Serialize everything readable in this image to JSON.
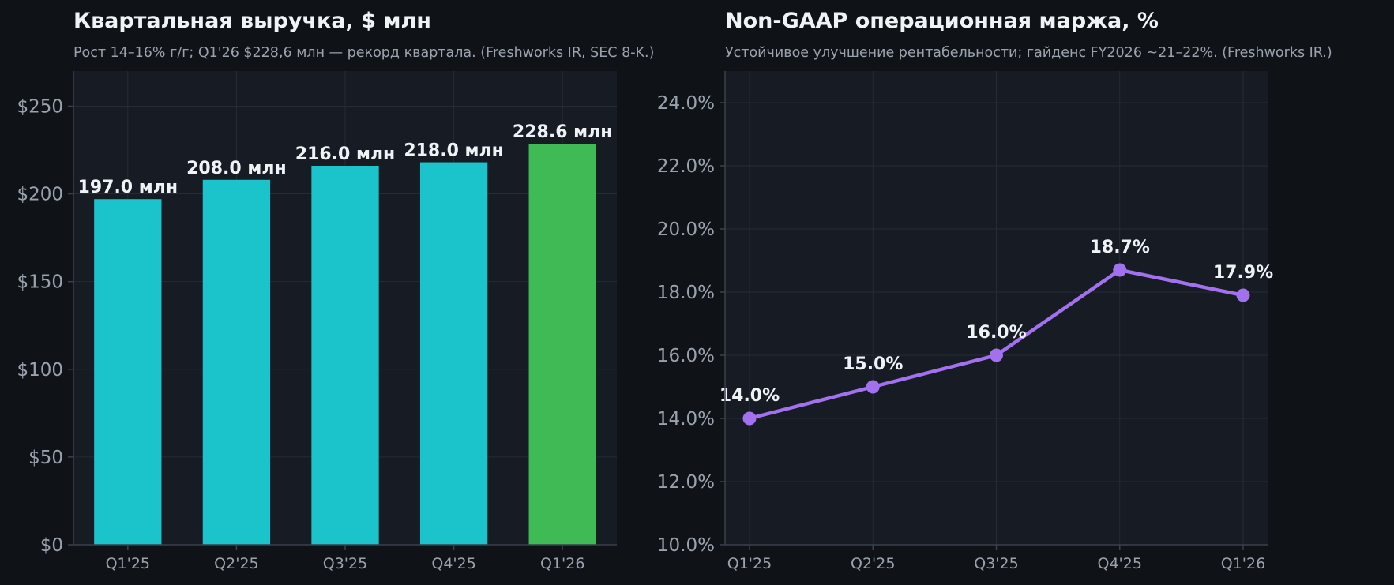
{
  "chart_data": [
    {
      "type": "bar",
      "title": "Квартальная выручка, $ млн",
      "subtitle": "Рост 14–16% г/г; Q1'26 $228,6 млн — рекорд квартала. (Freshworks IR, SEC 8-K.)",
      "categories": [
        "Q1'25",
        "Q2'25",
        "Q3'25",
        "Q4'25",
        "Q1'26"
      ],
      "values": [
        197.0,
        208.0,
        216.0,
        218.0,
        228.6
      ],
      "data_labels": [
        "197.0 млн",
        "208.0 млн",
        "216.0 млн",
        "218.0 млн",
        "228.6 млн"
      ],
      "bar_colors": [
        "#1bc3cb",
        "#1bc3cb",
        "#1bc3cb",
        "#1bc3cb",
        "#3fba55"
      ],
      "ylim": [
        0,
        270
      ],
      "yticks": [
        0,
        50,
        100,
        150,
        200,
        250
      ],
      "ytick_labels": [
        "$0",
        "$50",
        "$100",
        "$150",
        "$200",
        "$250"
      ],
      "xlabel": "",
      "ylabel": "",
      "grid": true
    },
    {
      "type": "line",
      "title": "Non-GAAP операционная маржа, %",
      "subtitle": "Устойчивое улучшение рентабельности; гайденс FY2026 ~21–22%. (Freshworks IR.)",
      "categories": [
        "Q1'25",
        "Q2'25",
        "Q3'25",
        "Q4'25",
        "Q1'26"
      ],
      "values": [
        14.0,
        15.0,
        16.0,
        18.7,
        17.9
      ],
      "data_labels": [
        "14.0%",
        "15.0%",
        "16.0%",
        "18.7%",
        "17.9%"
      ],
      "line_color": "#a171ee",
      "ylim": [
        10,
        25
      ],
      "yticks": [
        10,
        12,
        14,
        16,
        18,
        20,
        22,
        24
      ],
      "ytick_labels": [
        "10.0%",
        "12.0%",
        "14.0%",
        "16.0%",
        "18.0%",
        "20.0%",
        "22.0%",
        "24.0%"
      ],
      "xlabel": "",
      "ylabel": "",
      "grid": true
    }
  ]
}
